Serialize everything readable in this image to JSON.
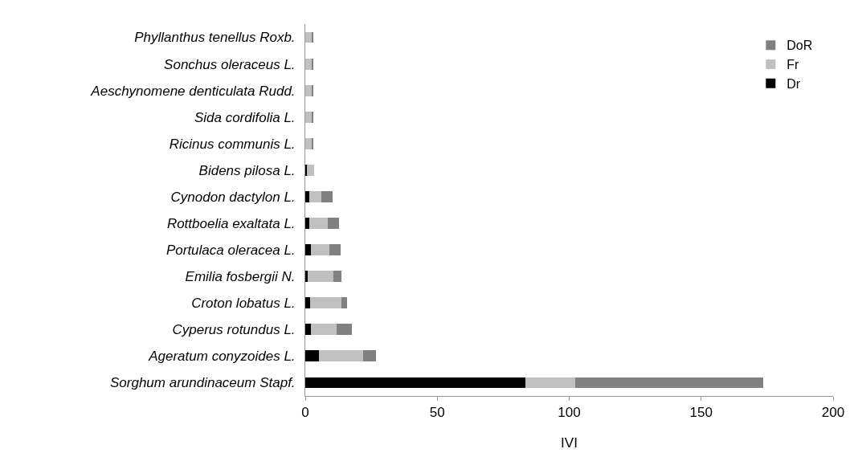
{
  "chart_data": {
    "type": "bar",
    "orientation": "horizontal",
    "stacked": true,
    "xlabel": "IVI",
    "categories": [
      "Phyllanthus tenellus Roxb.",
      "Sonchus oleraceus L.",
      "Aeschynomene denticulata Rudd.",
      "Sida cordifolia L.",
      "Ricinus communis L.",
      "Bidens pilosa L.",
      "Cynodon dactylon L.",
      "Rottboelia exaltata L.",
      "Portulaca oleracea L.",
      "Emilia fosbergii N.",
      "Croton lobatus L.",
      "Cyperus rotundus L.",
      "Ageratum conyzoides L.",
      "Sorghum arundinaceum Stapf."
    ],
    "series": [
      {
        "name": "Dr",
        "color": "#000000",
        "values": [
          0,
          0,
          0,
          0,
          0,
          0.5,
          1.4,
          1.4,
          2.2,
          0.9,
          1.8,
          2.2,
          5.3,
          83.3
        ]
      },
      {
        "name": "Fr",
        "color": "#c0c0c0",
        "values": [
          2.6,
          2.6,
          2.6,
          2.6,
          2.6,
          2.7,
          4.6,
          7.2,
          7.0,
          9.8,
          12.0,
          9.7,
          16.6,
          19.0
        ]
      },
      {
        "name": "DoR",
        "color": "#808080",
        "values": [
          0.3,
          0.3,
          0.3,
          0.3,
          0.3,
          0,
          4.2,
          4.2,
          4.2,
          3.1,
          1.9,
          5.7,
          4.9,
          71.2
        ]
      }
    ],
    "xlim": [
      0,
      200
    ],
    "xticks": [
      0,
      50,
      100,
      150,
      200
    ],
    "grid": false,
    "legend": "top right"
  }
}
